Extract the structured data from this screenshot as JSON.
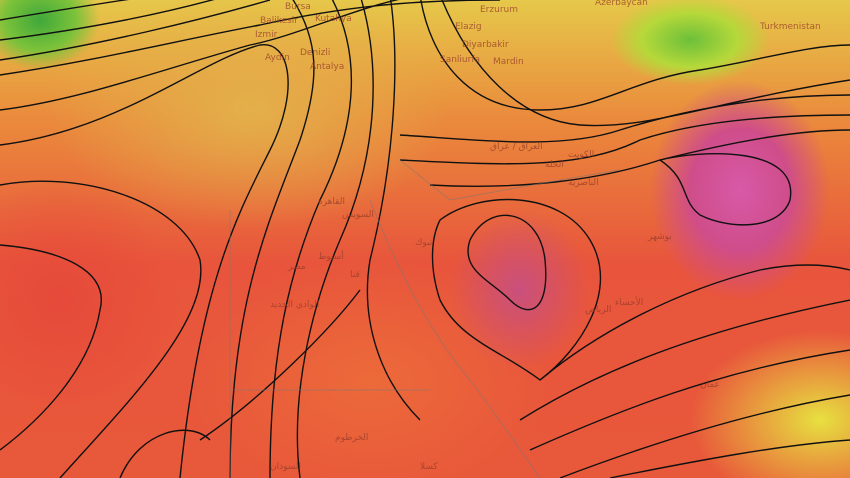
{
  "map": {
    "type": "weather-map",
    "layer": "temperature-and-geopotential-height",
    "colors": {
      "cold": "#3fa83a",
      "mild": "#e6c84a",
      "warm": "#ea8a3c",
      "hot": "#e8553c",
      "extreme": "#d85aa8",
      "contour": "#111111"
    },
    "places": [
      {
        "name": "Bursa"
      },
      {
        "name": "Kutahya"
      },
      {
        "name": "Balikesir"
      },
      {
        "name": "Izmir"
      },
      {
        "name": "Aydin"
      },
      {
        "name": "Denizli"
      },
      {
        "name": "Antalya"
      },
      {
        "name": "Erzurum"
      },
      {
        "name": "Elazig"
      },
      {
        "name": "Diyarbakir"
      },
      {
        "name": "Sanliurfa"
      },
      {
        "name": "Mardin"
      },
      {
        "name": "Azerbaycan"
      },
      {
        "name": "Turkmenistan"
      },
      {
        "name": "القاهرة"
      },
      {
        "name": "السويس"
      },
      {
        "name": "أسيوط"
      },
      {
        "name": "قنا"
      },
      {
        "name": "مصر"
      },
      {
        "name": "الوادي الجديد"
      },
      {
        "name": "تبوك"
      },
      {
        "name": "العراق / عراق"
      },
      {
        "name": "الكويت"
      },
      {
        "name": "الحلة"
      },
      {
        "name": "الناصرية"
      },
      {
        "name": "بوشهر"
      },
      {
        "name": "الرياض"
      },
      {
        "name": "الأحساء"
      },
      {
        "name": "الخرطوم"
      },
      {
        "name": "السودان"
      },
      {
        "name": "كسلا"
      },
      {
        "name": "عمان"
      }
    ]
  }
}
